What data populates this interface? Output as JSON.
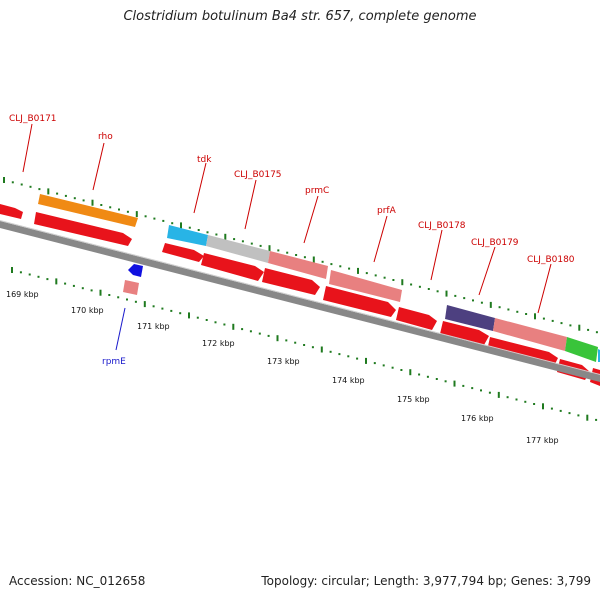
{
  "title": "Clostridium botulinum Ba4 str. 657, complete genome",
  "footer": {
    "accession": "Accession: NC_012658",
    "topology": "Topology: circular; Length: 3,977,794 bp; Genes: 3,799"
  },
  "colors": {
    "cds": "#e8131b",
    "backbone": "#888888",
    "tick": "#1f7a1f",
    "label_red": "#cc0000",
    "label_blue": "#1a1acc",
    "orange": "#f08a14",
    "cyan": "#28b4e6",
    "gray": "#c0c0c0",
    "pink": "#e88080",
    "purple": "#4d4080",
    "green": "#39c43a",
    "blue": "#1010e0"
  },
  "kbp_labels": [
    "169 kbp",
    "170 kbp",
    "171 kbp",
    "172 kbp",
    "173 kbp",
    "174 kbp",
    "175 kbp",
    "176 kbp",
    "177 kbp"
  ],
  "gene_labels": [
    "CLJ_B0171",
    "rho",
    "tdk",
    "CLJ_B0175",
    "prmC",
    "prfA",
    "CLJ_B0178",
    "CLJ_B0179",
    "CLJ_B0180"
  ],
  "reverse_label": "rpmE"
}
